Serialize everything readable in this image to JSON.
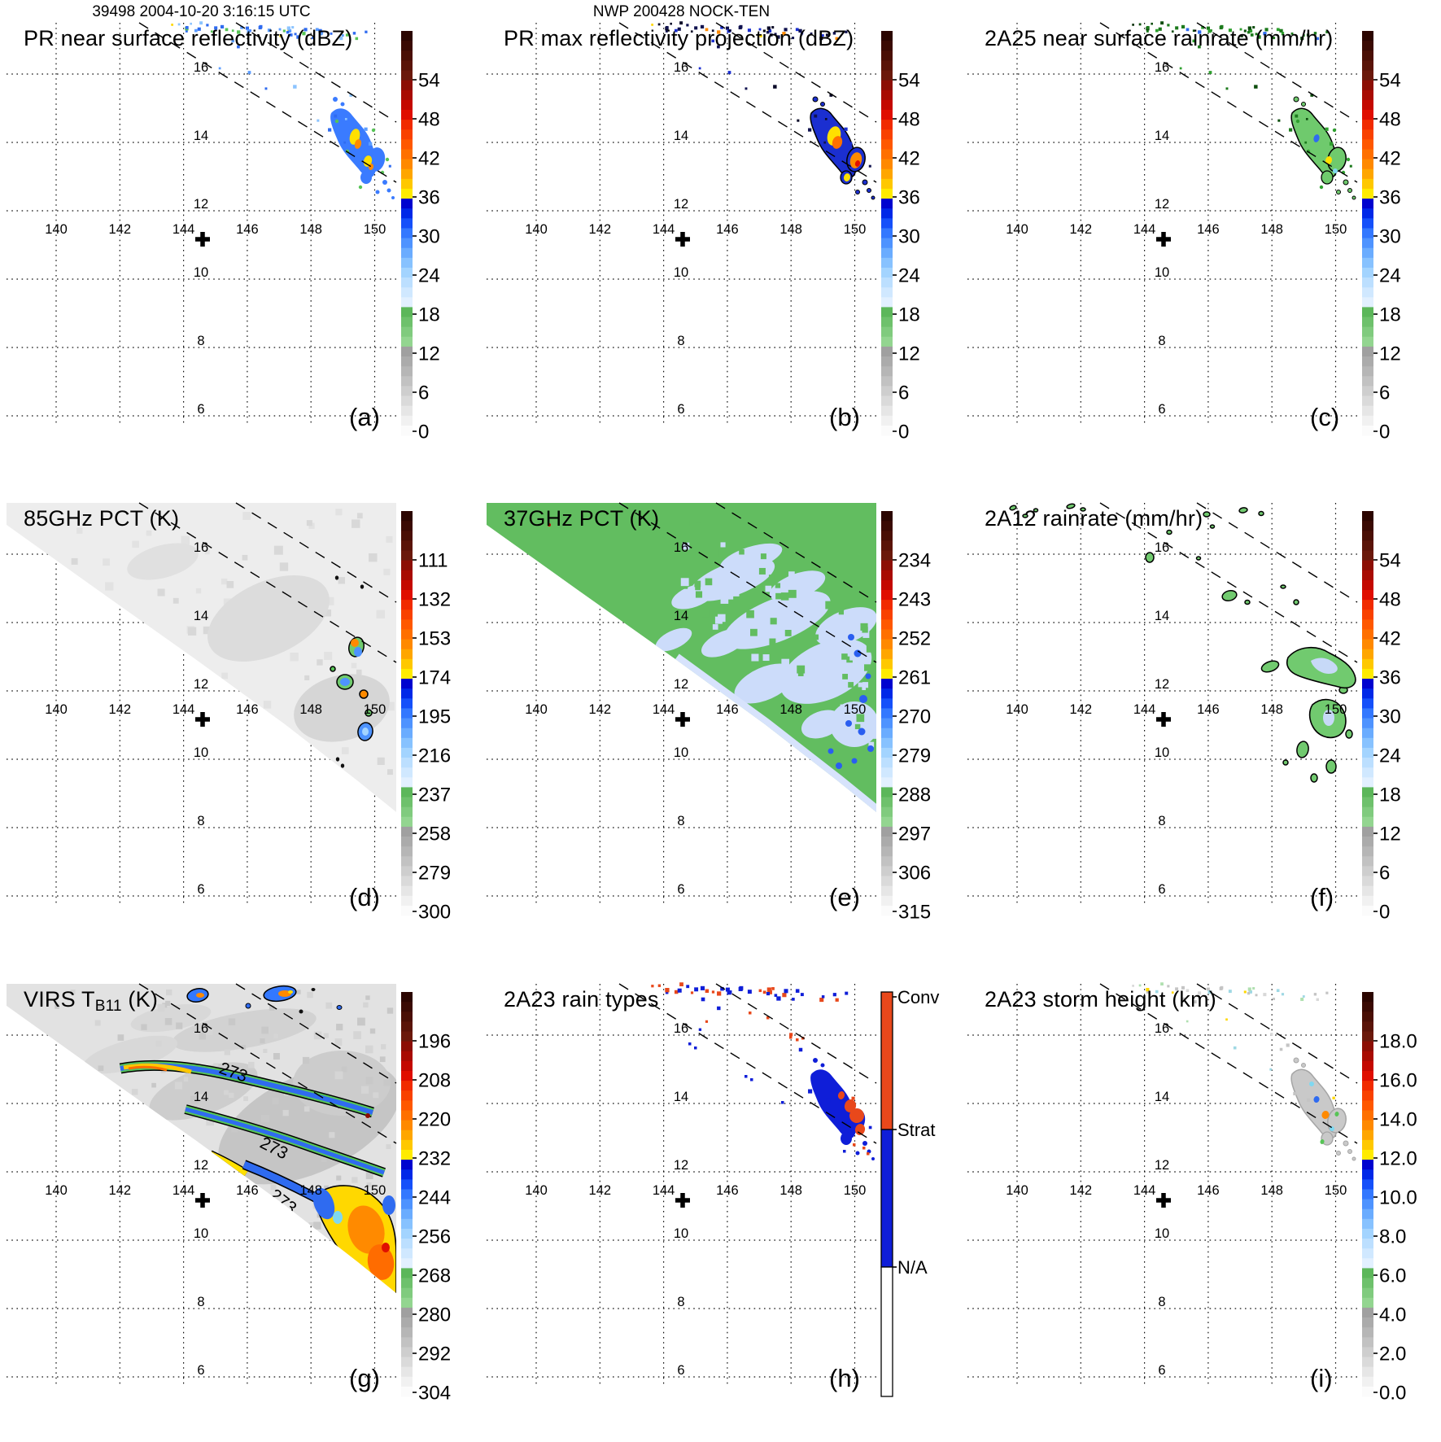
{
  "figure": {
    "header_left": "39498 2004-10-20 3:16:15 UTC",
    "header_center": "NWP 200428 NOCK-TEN"
  },
  "axes": {
    "lon_ticks": [
      "140",
      "142",
      "144",
      "146",
      "148",
      "150"
    ],
    "lat_ticks": [
      "16",
      "14",
      "12",
      "10",
      "8",
      "6"
    ]
  },
  "colors": {
    "scale_top_to_bottom": [
      "#2b0500",
      "#3a0a03",
      "#4a0f05",
      "#5a1408",
      "#6b190b",
      "#8c0e04",
      "#a80b02",
      "#c40800",
      "#e00e00",
      "#f12b00",
      "#f94100",
      "#ff5800",
      "#ff7000",
      "#ff8900",
      "#ffa600",
      "#ffc800",
      "#ffeb00",
      "#0003cf",
      "#0028e8",
      "#1550fa",
      "#3378ff",
      "#4e93ff",
      "#6aacff",
      "#87c2ff",
      "#a3d4ff",
      "#bcdfff",
      "#d0e8ff",
      "#e2f0ff",
      "#5cb75a",
      "#6ec16c",
      "#80cb7e",
      "#93d590",
      "#a0a0a0",
      "#ababab",
      "#b6b6b6",
      "#c2c2c2",
      "#cecece",
      "#dadada",
      "#e6e6e6",
      "#f1f1f1",
      "#fbfbfb"
    ],
    "convective": "#e8481b",
    "stratiform": "#0f1ed8",
    "not_available": "#ffffff"
  },
  "panels": [
    {
      "letter": "(a)",
      "title": "PR near surface reflectivity (dBZ)",
      "title_sub": "",
      "title_tail": "",
      "colorbar_ticks": [
        "54",
        "48",
        "42",
        "36",
        "30",
        "24",
        "18",
        "12",
        "6",
        "0"
      ]
    },
    {
      "letter": "(b)",
      "title": "PR max reflectivity projection (dBZ)",
      "title_sub": "",
      "title_tail": "",
      "colorbar_ticks": [
        "54",
        "48",
        "42",
        "36",
        "30",
        "24",
        "18",
        "12",
        "6",
        "0"
      ]
    },
    {
      "letter": "(c)",
      "title": "2A25 near surface rainrate (mm/hr)",
      "title_sub": "",
      "title_tail": "",
      "colorbar_ticks": [
        "54",
        "48",
        "42",
        "36",
        "30",
        "24",
        "18",
        "12",
        "6",
        "0"
      ]
    },
    {
      "letter": "(d)",
      "title": "85GHz PCT (K)",
      "title_sub": "",
      "title_tail": "",
      "colorbar_ticks": [
        "111",
        "132",
        "153",
        "174",
        "195",
        "216",
        "237",
        "258",
        "279",
        "300"
      ]
    },
    {
      "letter": "(e)",
      "title": "37GHz PCT (K)",
      "title_sub": "",
      "title_tail": "",
      "colorbar_ticks": [
        "234",
        "243",
        "252",
        "261",
        "270",
        "279",
        "288",
        "297",
        "306",
        "315"
      ]
    },
    {
      "letter": "(f)",
      "title": "2A12 rainrate (mm/hr)",
      "title_sub": "",
      "title_tail": "",
      "colorbar_ticks": [
        "54",
        "48",
        "42",
        "36",
        "30",
        "24",
        "18",
        "12",
        "6",
        "0"
      ]
    },
    {
      "letter": "(g)",
      "title": "VIRS T",
      "title_sub": "B11",
      "title_tail": " (K)",
      "colorbar_ticks": [
        "196",
        "208",
        "220",
        "232",
        "244",
        "256",
        "268",
        "280",
        "292",
        "304"
      ],
      "contour_label": "273"
    },
    {
      "letter": "(h)",
      "title": "2A23 rain types",
      "title_sub": "",
      "title_tail": "",
      "colorbar_labels": [
        "Conv",
        "Strat",
        "N/A"
      ]
    },
    {
      "letter": "(i)",
      "title": "2A23 storm height (km)",
      "title_sub": "",
      "title_tail": "",
      "colorbar_ticks": [
        "18.0",
        "16.0",
        "14.0",
        "12.0",
        "10.0",
        "8.0",
        "6.0",
        "4.0",
        "2.0",
        "0.0"
      ]
    }
  ],
  "chart_data": {
    "type": "heatmap",
    "layout": "3x3 grid of satellite map panels (TRMM overpass of tropical cyclone NOCK-TEN)",
    "orbit_header": "39498 2004-10-20 3:16:15 UTC",
    "storm_header": "NWP 200428 NOCK-TEN",
    "shared_axes": {
      "lon_range": [
        138.4,
        150.7
      ],
      "lon_ticks": [
        140,
        142,
        144,
        146,
        148,
        150
      ],
      "lat_range": [
        5.8,
        17.6
      ],
      "lat_ticks": [
        16,
        14,
        12,
        10,
        8,
        6
      ],
      "grid": "dotted"
    },
    "storm_center_marker": {
      "lon": 144.5,
      "lat": 11.1,
      "symbol": "bold plus"
    },
    "pr_swath_edges": "two parallel dashed lines running NW to SE across every panel",
    "panels": [
      {
        "label": "(a)",
        "title": "PR near surface reflectivity (dBZ)",
        "colorbar_ticks": [
          54,
          48,
          42,
          36,
          30,
          24,
          18,
          12,
          6,
          0
        ],
        "features": "scattered blue echoes 16-17.5N 143-150E; curved rainband 12.5-14.5N 148.5-150.7E with blue 24-35 dBZ and yellow/orange 36-48 dBZ cores"
      },
      {
        "label": "(b)",
        "title": "PR max reflectivity projection (dBZ)",
        "colorbar_ticks": [
          54,
          48,
          42,
          36,
          30,
          24,
          18,
          12,
          6,
          0
        ],
        "features": "same echoes as (a) but outlined, with larger yellow/orange 36-48 dBZ cores"
      },
      {
        "label": "(c)",
        "title": "2A25 near surface rainrate (mm/hr)",
        "colorbar_ticks": [
          54,
          48,
          42,
          36,
          30,
          24,
          18,
          12,
          6,
          0
        ],
        "features": "rainband mostly green (<= ~20 mm/hr) with isolated blue/yellow pixels"
      },
      {
        "label": "(d)",
        "title": "85GHz PCT (K)",
        "colorbar_ticks": [
          111,
          132,
          153,
          174,
          195,
          216,
          237,
          258,
          279,
          300
        ],
        "features": "TMI swath (upper-right triangle, pale gray ~280-300K) with small outlined cold spots 150-250K along the rainband"
      },
      {
        "label": "(e)",
        "title": "37GHz PCT (K)",
        "colorbar_ticks": [
          234,
          243,
          252,
          261,
          270,
          279,
          288,
          297,
          306,
          315
        ],
        "features": "TMI swath: green ~285-295K ocean background, pale-blue ~275-285K mottling, deep blue ~265-270K spots near 13N 150E"
      },
      {
        "label": "(f)",
        "title": "2A12 rainrate (mm/hr)",
        "colorbar_ticks": [
          54,
          48,
          42,
          36,
          30,
          24,
          18,
          12,
          6,
          0
        ],
        "features": "outlined green rain areas (<= ~18 mm/hr) with pale blue cores near 12-13.5N 148-150.5E"
      },
      {
        "label": "(g)",
        "title": "VIRS TB11 (K)",
        "colorbar_ticks": [
          196,
          208,
          220,
          232,
          244,
          256,
          268,
          280,
          292,
          304
        ],
        "features": "gray warm cloud field, 273 K contours labelled three times, spiral cold bands blue 240-255K with yellow/orange 200-230K cores in SE quadrant"
      },
      {
        "label": "(h)",
        "title": "2A23 rain types",
        "legend": [
          "Conv",
          "Strat",
          "N/A"
        ],
        "features": "stratiform (blue) rainband pixels with embedded convective (orange-red) cells; scattered convective specks along 16-17N"
      },
      {
        "label": "(i)",
        "title": "2A23 storm height (km)",
        "colorbar_ticks": [
          18.0,
          16.0,
          14.0,
          12.0,
          10.0,
          8.0,
          6.0,
          4.0,
          2.0,
          0.0
        ],
        "features": "storm heights mostly 2-6 km (gray) in rainband with isolated 8-14 km (cyan/blue/orange) pixels"
      }
    ]
  }
}
